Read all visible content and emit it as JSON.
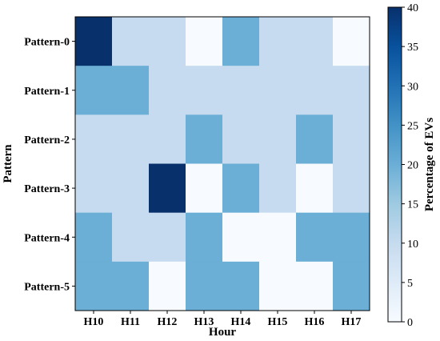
{
  "chart_data": {
    "type": "heatmap",
    "title": "",
    "xlabel": "Hour",
    "ylabel": "Pattern",
    "x_categories": [
      "H10",
      "H11",
      "H12",
      "H13",
      "H14",
      "H15",
      "H16",
      "H17"
    ],
    "y_categories": [
      "Pattern-0",
      "Pattern-1",
      "Pattern-2",
      "Pattern-3",
      "Pattern-4",
      "Pattern-5"
    ],
    "values": [
      [
        40,
        10,
        10,
        0,
        20,
        10,
        10,
        0
      ],
      [
        20,
        20,
        10,
        10,
        10,
        10,
        10,
        10
      ],
      [
        10,
        10,
        10,
        20,
        10,
        10,
        20,
        10
      ],
      [
        10,
        10,
        40,
        0,
        20,
        10,
        0,
        10
      ],
      [
        20,
        10,
        10,
        20,
        0,
        0,
        20,
        20
      ],
      [
        20,
        20,
        0,
        20,
        20,
        0,
        0,
        20
      ]
    ],
    "colorbar": {
      "label": "Percentage of EVs",
      "range": [
        0,
        40
      ],
      "ticks": [
        0,
        5,
        10,
        15,
        20,
        25,
        30,
        35,
        40
      ],
      "colormap": "Blues",
      "color_low": "#f7fbff",
      "color_high": "#08306b"
    },
    "grid": false
  }
}
